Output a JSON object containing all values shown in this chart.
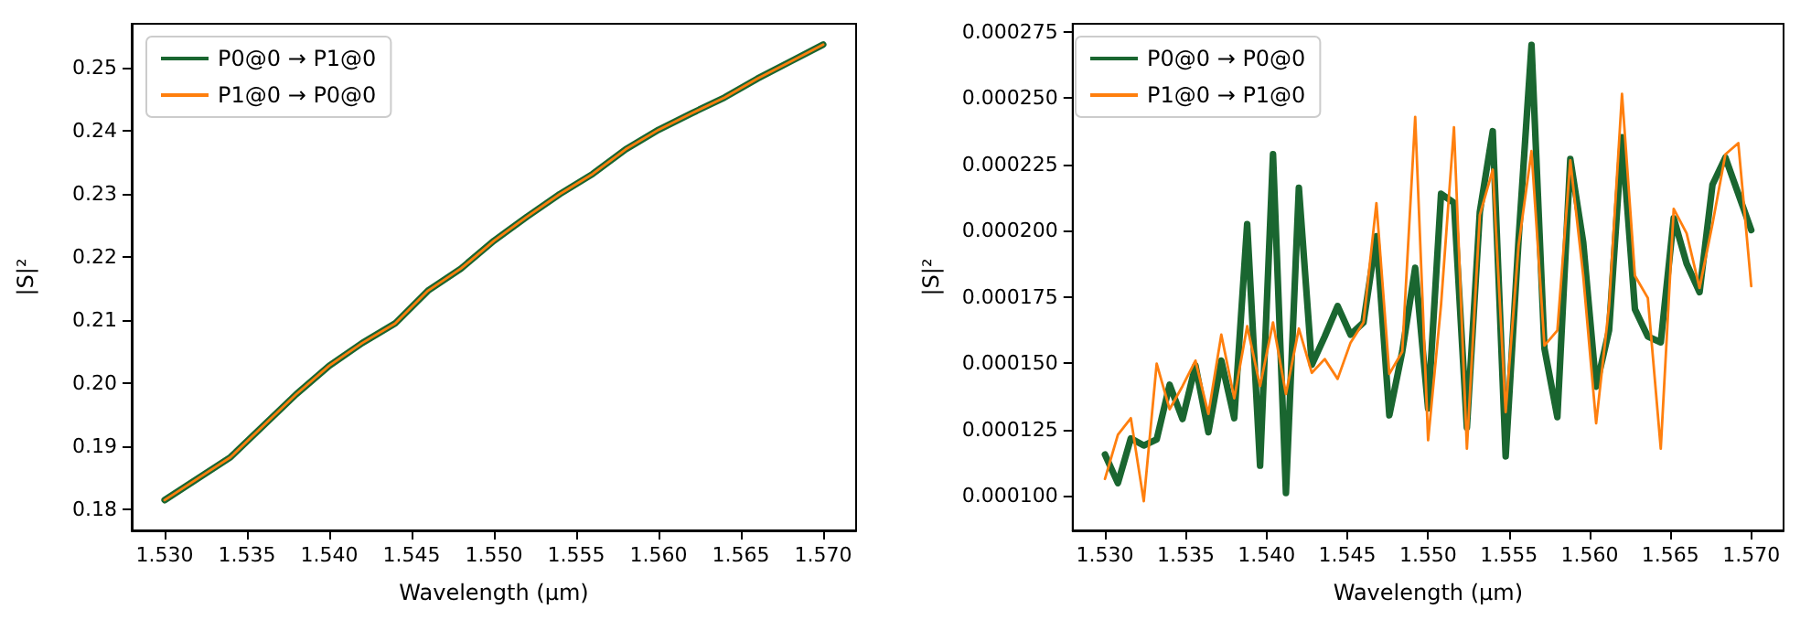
{
  "chart_data": [
    {
      "type": "line",
      "xlabel": "Wavelength (µm)",
      "ylabel": "|S|²",
      "legend": "top left",
      "grid": false,
      "marker": "none",
      "line_style": "solid",
      "x": [
        1.53,
        1.534,
        1.538,
        1.54,
        1.542,
        1.544,
        1.546,
        1.548,
        1.55,
        1.552,
        1.554,
        1.556,
        1.558,
        1.56,
        1.562,
        1.564,
        1.566,
        1.568,
        1.57
      ],
      "series": [
        {
          "name": "P0@0 → P1@0",
          "color": "#1a6630",
          "values": [
            0.1815,
            0.1883,
            0.1983,
            0.2028,
            0.2064,
            0.2095,
            0.2147,
            0.2182,
            0.2226,
            0.2264,
            0.23,
            0.2332,
            0.2371,
            0.2402,
            0.2428,
            0.2453,
            0.2483,
            0.251,
            0.2537
          ]
        },
        {
          "name": "P1@0 → P0@0",
          "color": "#ff7f0e",
          "values": [
            0.1815,
            0.1883,
            0.1983,
            0.2028,
            0.2064,
            0.2095,
            0.2147,
            0.2182,
            0.2226,
            0.2264,
            0.23,
            0.2332,
            0.2371,
            0.2402,
            0.2428,
            0.2453,
            0.2483,
            0.251,
            0.2537
          ]
        }
      ],
      "xlim": [
        1.528,
        1.572
      ],
      "ylim": [
        0.1767,
        0.257
      ],
      "xticks": [
        {
          "value": 1.53,
          "label": "1.530"
        },
        {
          "value": 1.535,
          "label": "1.535"
        },
        {
          "value": 1.54,
          "label": "1.540"
        },
        {
          "value": 1.545,
          "label": "1.545"
        },
        {
          "value": 1.55,
          "label": "1.550"
        },
        {
          "value": 1.555,
          "label": "1.555"
        },
        {
          "value": 1.56,
          "label": "1.560"
        },
        {
          "value": 1.565,
          "label": "1.565"
        },
        {
          "value": 1.57,
          "label": "1.570"
        }
      ],
      "yticks": [
        {
          "value": 0.18,
          "label": "0.18"
        },
        {
          "value": 0.19,
          "label": "0.19"
        },
        {
          "value": 0.2,
          "label": "0.20"
        },
        {
          "value": 0.21,
          "label": "0.21"
        },
        {
          "value": 0.22,
          "label": "0.22"
        },
        {
          "value": 0.23,
          "label": "0.23"
        },
        {
          "value": 0.24,
          "label": "0.24"
        },
        {
          "value": 0.25,
          "label": "0.25"
        }
      ]
    },
    {
      "type": "line",
      "xlabel": "Wavelength (µm)",
      "ylabel": "|S|²",
      "legend": "top left",
      "grid": false,
      "marker": "none",
      "line_style": "solid",
      "x": [
        1.53,
        1.5308,
        1.5316,
        1.5324,
        1.5332,
        1.534,
        1.5348,
        1.5356,
        1.5364,
        1.5372,
        1.538,
        1.5388,
        1.5396,
        1.5404,
        1.5412,
        1.542,
        1.5428,
        1.5436,
        1.5444,
        1.5452,
        1.546,
        1.5468,
        1.5476,
        1.5484,
        1.5492,
        1.55,
        1.5508,
        1.5516,
        1.5524,
        1.5532,
        1.554,
        1.5548,
        1.5556,
        1.5564,
        1.5572,
        1.558,
        1.5588,
        1.5596,
        1.5604,
        1.5612,
        1.562,
        1.5628,
        1.5636,
        1.5644,
        1.5652,
        1.566,
        1.5668,
        1.5676,
        1.5684,
        1.5692,
        1.57
      ],
      "series": [
        {
          "name": "P0@0 → P0@0",
          "color": "#1a6630",
          "values": [
            0.0001156,
            0.0001048,
            0.0001217,
            0.000119,
            0.0001213,
            0.0001419,
            0.000129,
            0.0001492,
            0.000124,
            0.000151,
            0.0001293,
            0.0002025,
            0.0001114,
            0.0002288,
            0.0001011,
            0.0002162,
            0.0001494,
            0.0001601,
            0.0001716,
            0.0001608,
            0.0001654,
            0.0001979,
            0.0001304,
            0.0001544,
            0.000186,
            0.000133,
            0.0002139,
            0.0002105,
            0.0001258,
            0.000207,
            0.0002375,
            0.0001149,
            0.0001967,
            0.00027,
            0.0001556,
            0.0001297,
            0.000227,
            0.0001956,
            0.0001412,
            0.0001624,
            0.0002352,
            0.0001704,
            0.0001601,
            0.0001579,
            0.0002047,
            0.0001876,
            0.0001768,
            0.0002173,
            0.0002276,
            0.0002139,
            0.0002002
          ]
        },
        {
          "name": "P1@0 → P1@0",
          "color": "#ff7f0e",
          "values": [
            0.0001064,
            0.0001231,
            0.0001293,
            9.8e-05,
            0.0001499,
            0.0001327,
            0.0001414,
            0.000151,
            0.0001309,
            0.0001608,
            0.0001368,
            0.000164,
            0.0001414,
            0.0001654,
            0.0001384,
            0.0001631,
            0.0001464,
            0.0001516,
            0.0001441,
            0.0001578,
            0.0001654,
            0.0002104,
            0.000146,
            0.0001544,
            0.0002429,
            0.000121,
            0.000172,
            0.000239,
            0.0001178,
            0.0002059,
            0.000223,
            0.0001316,
            0.0001944,
            0.00023,
            0.0001567,
            0.0001624,
            0.0002265,
            0.000183,
            0.0001274,
            0.0001716,
            0.0002516,
            0.000183,
            0.0001746,
            0.0001178,
            0.0002082,
            0.000199,
            0.0001784,
            0.0002025,
            0.0002288,
            0.000233,
            0.0001791
          ]
        }
      ],
      "xlim": [
        1.528,
        1.572
      ],
      "ylim": [
        8.7e-05,
        0.000278
      ],
      "xticks": [
        {
          "value": 1.53,
          "label": "1.530"
        },
        {
          "value": 1.535,
          "label": "1.535"
        },
        {
          "value": 1.54,
          "label": "1.540"
        },
        {
          "value": 1.545,
          "label": "1.545"
        },
        {
          "value": 1.55,
          "label": "1.550"
        },
        {
          "value": 1.555,
          "label": "1.555"
        },
        {
          "value": 1.56,
          "label": "1.560"
        },
        {
          "value": 1.565,
          "label": "1.565"
        },
        {
          "value": 1.57,
          "label": "1.570"
        }
      ],
      "yticks": [
        {
          "value": 0.0001,
          "label": "0.000100"
        },
        {
          "value": 0.000125,
          "label": "0.000125"
        },
        {
          "value": 0.00015,
          "label": "0.000150"
        },
        {
          "value": 0.000175,
          "label": "0.000175"
        },
        {
          "value": 0.0002,
          "label": "0.000200"
        },
        {
          "value": 0.000225,
          "label": "0.000225"
        },
        {
          "value": 0.00025,
          "label": "0.000250"
        },
        {
          "value": 0.000275,
          "label": "0.000275"
        }
      ]
    }
  ]
}
